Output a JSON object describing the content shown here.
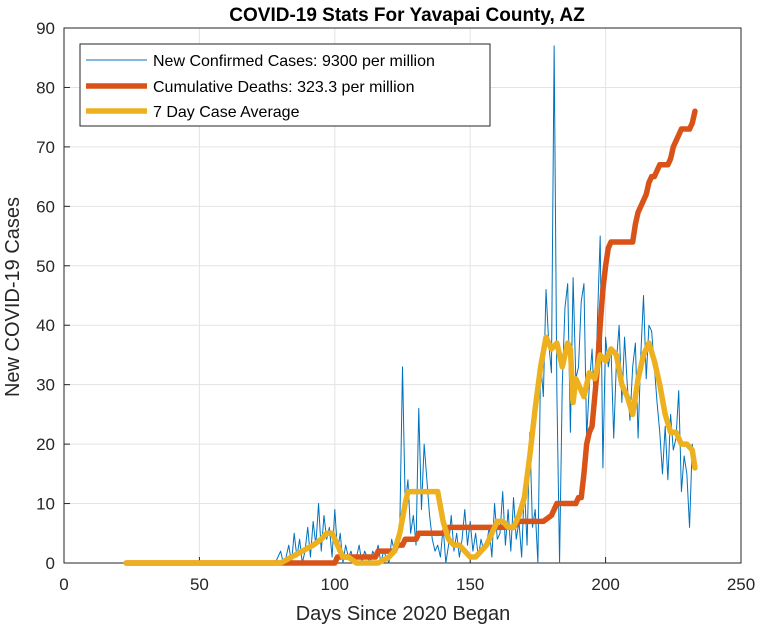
{
  "chart_data": {
    "type": "line",
    "title": "COVID-19 Stats For Yavapai County, AZ",
    "xlabel": "Days Since 2020 Began",
    "ylabel": "New COVID-19 Cases",
    "xlim": [
      0,
      250
    ],
    "ylim": [
      0,
      90
    ],
    "xticks": [
      0,
      50,
      100,
      150,
      200,
      250
    ],
    "yticks": [
      0,
      10,
      20,
      30,
      40,
      50,
      60,
      70,
      80,
      90
    ],
    "grid": true,
    "legend_position": "top-left",
    "series": [
      {
        "name": "New Confirmed Cases: 9300 per million",
        "color": "#0072BD",
        "line_width": "thin",
        "x": [
          23,
          60,
          75,
          78,
          80,
          81,
          82,
          83,
          84,
          85,
          86,
          87,
          88,
          89,
          90,
          91,
          92,
          93,
          94,
          95,
          96,
          97,
          98,
          99,
          100,
          101,
          102,
          103,
          104,
          105,
          106,
          107,
          108,
          109,
          110,
          111,
          112,
          113,
          114,
          115,
          116,
          117,
          118,
          119,
          120,
          121,
          122,
          123,
          124,
          125,
          126,
          127,
          128,
          129,
          130,
          131,
          132,
          133,
          134,
          135,
          136,
          137,
          138,
          139,
          140,
          141,
          142,
          143,
          144,
          145,
          146,
          147,
          148,
          149,
          150,
          151,
          152,
          153,
          154,
          155,
          156,
          157,
          158,
          159,
          160,
          161,
          162,
          163,
          164,
          165,
          166,
          167,
          168,
          169,
          170,
          171,
          172,
          173,
          174,
          175,
          176,
          177,
          178,
          179,
          180,
          181,
          182,
          183,
          184,
          185,
          186,
          187,
          188,
          189,
          190,
          191,
          192,
          193,
          194,
          195,
          196,
          197,
          198,
          199,
          200,
          201,
          202,
          203,
          204,
          205,
          206,
          207,
          208,
          209,
          210,
          211,
          212,
          213,
          214,
          215,
          216,
          217,
          218,
          219,
          220,
          221,
          222,
          223,
          224,
          225,
          226,
          227,
          228,
          229,
          230,
          231,
          232,
          233
        ],
        "y": [
          0,
          0,
          0,
          0,
          2,
          0,
          1,
          3,
          0,
          5,
          1,
          4,
          0,
          2,
          6,
          1,
          7,
          3,
          10,
          2,
          8,
          4,
          6,
          1,
          9,
          2,
          5,
          0,
          3,
          1,
          2,
          0,
          1,
          3,
          0,
          2,
          1,
          0,
          2,
          1,
          3,
          0,
          2,
          1,
          0,
          4,
          2,
          3,
          6,
          33,
          10,
          14,
          5,
          8,
          3,
          26,
          9,
          20,
          14,
          8,
          4,
          2,
          3,
          1,
          6,
          0,
          3,
          8,
          2,
          5,
          1,
          4,
          9,
          3,
          7,
          2,
          5,
          1,
          4,
          2,
          3,
          6,
          1,
          10,
          4,
          5,
          12,
          3,
          9,
          2,
          11,
          4,
          7,
          1,
          13,
          3,
          22,
          6,
          9,
          0,
          34,
          28,
          46,
          37,
          32,
          87,
          29,
          0,
          30,
          43,
          47,
          22,
          48,
          31,
          33,
          44,
          47,
          21,
          30,
          36,
          25,
          41,
          55,
          16,
          38,
          33,
          36,
          21,
          34,
          40,
          27,
          38,
          30,
          24,
          33,
          37,
          21,
          35,
          45,
          31,
          40,
          39,
          33,
          27,
          22,
          15,
          23,
          14,
          25,
          19,
          21,
          29,
          12,
          18,
          15,
          6,
          20,
          16
        ],
        "data_values": "estimated"
      },
      {
        "name": "Cumulative Deaths: 323.3 per million",
        "color": "#D95319",
        "line_width": "thick",
        "x": [
          23,
          100,
          101,
          115,
          116,
          122,
          123,
          124,
          125,
          126,
          127,
          128,
          130,
          131,
          135,
          136,
          140,
          142,
          144,
          162,
          163,
          166,
          168,
          175,
          177,
          180,
          182,
          186,
          187,
          189,
          190,
          191,
          192,
          193,
          194,
          195,
          196,
          197,
          198,
          199,
          200,
          201,
          202,
          203,
          204,
          205,
          206,
          210,
          211,
          212,
          213,
          214,
          215,
          216,
          217,
          218,
          219,
          220,
          221,
          222,
          223,
          224,
          225,
          226,
          227,
          228,
          229,
          230,
          231,
          232,
          233
        ],
        "y": [
          0,
          0,
          1,
          1,
          2,
          2,
          3,
          3,
          3,
          4,
          4,
          4,
          4,
          5,
          5,
          5,
          5,
          6,
          6,
          6,
          6,
          6,
          7,
          7,
          7,
          8,
          10,
          10,
          10,
          10,
          11,
          11,
          15,
          20,
          22,
          23,
          28,
          33,
          40,
          46,
          50,
          53,
          54,
          54,
          54,
          54,
          54,
          54,
          57,
          59,
          60,
          61,
          62,
          64,
          65,
          65,
          66,
          67,
          67,
          67,
          67,
          68,
          70,
          71,
          72,
          73,
          73,
          73,
          73,
          74,
          76
        ]
      },
      {
        "name": "7 Day Case Average",
        "color": "#EDB120",
        "line_width": "thick",
        "x": [
          23,
          60,
          80,
          84,
          88,
          92,
          95,
          97,
          99,
          101,
          103,
          105,
          108,
          112,
          116,
          120,
          122,
          124,
          126,
          127,
          128,
          130,
          132,
          134,
          136,
          138,
          140,
          142,
          144,
          146,
          148,
          150,
          152,
          154,
          156,
          158,
          160,
          162,
          164,
          166,
          168,
          170,
          172,
          174,
          176,
          178,
          180,
          182,
          184,
          186,
          187,
          188,
          189,
          190,
          192,
          194,
          196,
          198,
          200,
          202,
          204,
          206,
          208,
          210,
          212,
          214,
          216,
          218,
          220,
          222,
          224,
          226,
          228,
          230,
          232,
          233
        ],
        "y": [
          0,
          0,
          0,
          1,
          2,
          3,
          4,
          5,
          5,
          3,
          1,
          1,
          0,
          0,
          0,
          1,
          2,
          5,
          10,
          12,
          12,
          12,
          12,
          12,
          12,
          12,
          7,
          4,
          3,
          3,
          2,
          1,
          1,
          2,
          3,
          5,
          7,
          7,
          6,
          6,
          8,
          11,
          18,
          26,
          33,
          38,
          36,
          37,
          33,
          37,
          36,
          27,
          31,
          30,
          28,
          32,
          31,
          35,
          34,
          36,
          35,
          30,
          28,
          25,
          31,
          35,
          37,
          34,
          30,
          25,
          22,
          22,
          20,
          20,
          19,
          16
        ]
      }
    ]
  }
}
